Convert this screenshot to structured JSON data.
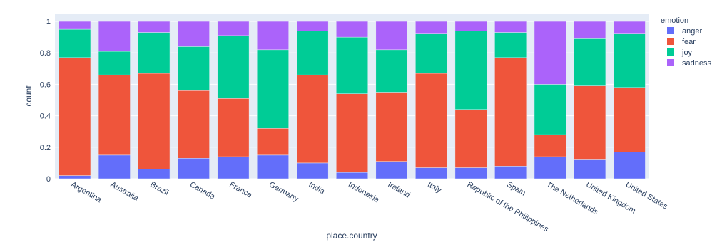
{
  "chart_data": {
    "type": "stacked-bar",
    "categories": [
      "Argentina",
      "Australia",
      "Brazil",
      "Canada",
      "France",
      "Germany",
      "India",
      "Indonesia",
      "Ireland",
      "Italy",
      "Republic of the Philippines",
      "Spain",
      "The Netherlands",
      "United Kingdom",
      "United States"
    ],
    "series": [
      {
        "name": "anger",
        "color": "#636efa",
        "values": [
          0.02,
          0.15,
          0.06,
          0.13,
          0.14,
          0.15,
          0.1,
          0.04,
          0.11,
          0.07,
          0.07,
          0.08,
          0.14,
          0.12,
          0.17
        ]
      },
      {
        "name": "fear",
        "color": "#ef553b",
        "values": [
          0.75,
          0.51,
          0.61,
          0.43,
          0.37,
          0.17,
          0.56,
          0.5,
          0.44,
          0.6,
          0.37,
          0.69,
          0.14,
          0.47,
          0.41
        ]
      },
      {
        "name": "joy",
        "color": "#00cc96",
        "values": [
          0.18,
          0.15,
          0.26,
          0.28,
          0.4,
          0.5,
          0.28,
          0.36,
          0.27,
          0.25,
          0.5,
          0.16,
          0.32,
          0.3,
          0.34
        ]
      },
      {
        "name": "sadness",
        "color": "#ab63fa",
        "values": [
          0.05,
          0.19,
          0.07,
          0.16,
          0.09,
          0.18,
          0.06,
          0.1,
          0.18,
          0.08,
          0.06,
          0.07,
          0.4,
          0.11,
          0.08
        ]
      }
    ],
    "legend_title": "emotion",
    "x_label": "place.country",
    "y_label": "count",
    "ylim": [
      0,
      1.05
    ],
    "yticks": [
      0,
      0.2,
      0.4,
      0.6,
      0.8,
      1
    ],
    "grid": true,
    "legend_position": "right"
  }
}
